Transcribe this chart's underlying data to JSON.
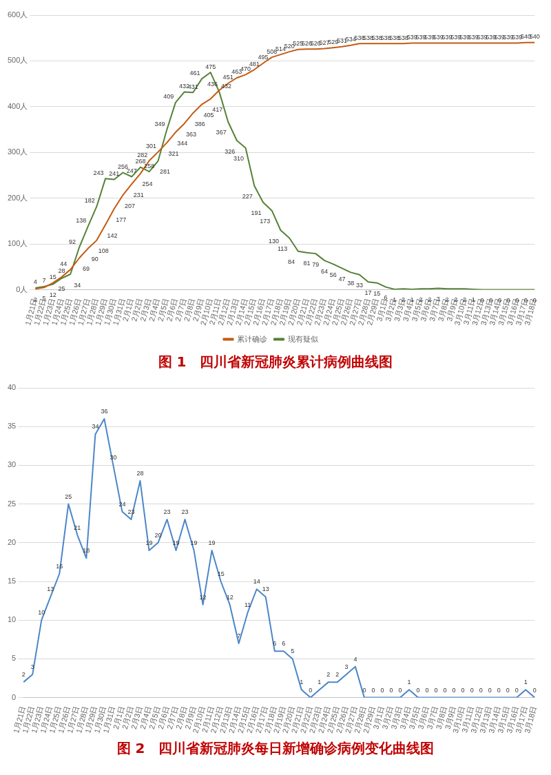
{
  "chart_data": [
    {
      "type": "line",
      "title": "图 1　四川省新冠肺炎累计病例曲线图",
      "categories": [
        "1月21日",
        "1月22日",
        "1月23日",
        "1月24日",
        "1月25日",
        "1月26日",
        "1月27日",
        "1月28日",
        "1月29日",
        "1月30日",
        "1月31日",
        "2月1日",
        "2月2日",
        "2月3日",
        "2月4日",
        "2月5日",
        "2月6日",
        "2月7日",
        "2月8日",
        "2月9日",
        "2月10日",
        "2月11日",
        "2月12日",
        "2月13日",
        "2月14日",
        "2月15日",
        "2月16日",
        "2月17日",
        "2月18日",
        "2月19日",
        "2月20日",
        "2月21日",
        "2月22日",
        "2月23日",
        "2月24日",
        "2月25日",
        "2月26日",
        "2月27日",
        "2月28日",
        "2月29日",
        "3月1日",
        "3月2日",
        "3月3日",
        "3月4日",
        "3月5日",
        "3月6日",
        "3月7日",
        "3月8日",
        "3月9日",
        "3月10日",
        "3月11日",
        "3月12日",
        "3月13日",
        "3月14日",
        "3月15日",
        "3月16日",
        "3月17日",
        "3月18日"
      ],
      "series": [
        {
          "name": "累计确诊",
          "color": "#c55a11",
          "values": [
            2,
            5,
            15,
            28,
            44,
            69,
            90,
            108,
            142,
            177,
            207,
            231,
            254,
            282,
            301,
            321,
            344,
            363,
            386,
            405,
            417,
            436,
            451,
            463,
            470,
            481,
            495,
            508,
            514,
            520,
            525,
            526,
            526,
            527,
            529,
            531,
            534,
            538,
            538,
            538,
            538,
            538,
            538,
            539,
            539,
            539,
            539,
            539,
            539,
            539,
            539,
            539,
            539,
            539,
            539,
            539,
            540,
            540
          ]
        },
        {
          "name": "现有疑似",
          "color": "#548235",
          "values": [
            4,
            7,
            12,
            25,
            34,
            92,
            138,
            182,
            243,
            241,
            256,
            247,
            268,
            258,
            281,
            349,
            409,
            432,
            431,
            461,
            475,
            432,
            367,
            326,
            310,
            227,
            191,
            173,
            130,
            113,
            84,
            81,
            79,
            64,
            56,
            47,
            38,
            33,
            17,
            15,
            6,
            1,
            2,
            1,
            2,
            2,
            3,
            2,
            2,
            2,
            1,
            0,
            0,
            0,
            0,
            0,
            0,
            0
          ]
        }
      ],
      "ylim": [
        0,
        600
      ],
      "yticks": [
        {
          "value": 0,
          "label": "0人"
        },
        {
          "value": 100,
          "label": "100人"
        },
        {
          "value": 200,
          "label": "200人"
        },
        {
          "value": 300,
          "label": "300人"
        },
        {
          "value": 400,
          "label": "400人"
        },
        {
          "value": 500,
          "label": "500人"
        },
        {
          "value": 600,
          "label": "600人"
        }
      ],
      "grid": "y",
      "legend": "bottom",
      "marker": "none",
      "data_labels": true
    },
    {
      "type": "line",
      "title": "图 2　四川省新冠肺炎每日新增确诊病例变化曲线图",
      "categories": [
        "1月21日",
        "1月22日",
        "1月23日",
        "1月24日",
        "1月25日",
        "1月26日",
        "1月27日",
        "1月28日",
        "1月29日",
        "1月30日",
        "1月31日",
        "2月1日",
        "2月2日",
        "2月3日",
        "2月4日",
        "2月5日",
        "2月6日",
        "2月7日",
        "2月8日",
        "2月9日",
        "2月10日",
        "2月11日",
        "2月12日",
        "2月13日",
        "2月14日",
        "2月15日",
        "2月16日",
        "2月17日",
        "2月18日",
        "2月19日",
        "2月20日",
        "2月21日",
        "2月22日",
        "2月23日",
        "2月24日",
        "2月25日",
        "2月26日",
        "2月27日",
        "2月28日",
        "2月29日",
        "3月1日",
        "3月2日",
        "3月3日",
        "3月4日",
        "3月5日",
        "3月6日",
        "3月7日",
        "3月8日",
        "3月9日",
        "3月10日",
        "3月11日",
        "3月12日",
        "3月13日",
        "3月14日",
        "3月15日",
        "3月16日",
        "3月17日",
        "3月18日"
      ],
      "series": [
        {
          "color": "#4a86c8",
          "values": [
            2,
            3,
            10,
            13,
            16,
            25,
            21,
            18,
            34,
            36,
            30,
            24,
            23,
            28,
            19,
            20,
            23,
            19,
            23,
            19,
            12,
            19,
            15,
            12,
            7,
            11,
            14,
            13,
            6,
            6,
            5,
            1,
            0,
            1,
            2,
            2,
            3,
            4,
            0,
            0,
            0,
            0,
            0,
            1,
            0,
            0,
            0,
            0,
            0,
            0,
            0,
            0,
            0,
            0,
            0,
            0,
            1,
            0
          ]
        }
      ],
      "ylim": [
        0,
        40
      ],
      "yticks": [
        0,
        5,
        10,
        15,
        20,
        25,
        30,
        35,
        40
      ],
      "grid": "y",
      "marker": "none",
      "data_labels": true
    }
  ]
}
